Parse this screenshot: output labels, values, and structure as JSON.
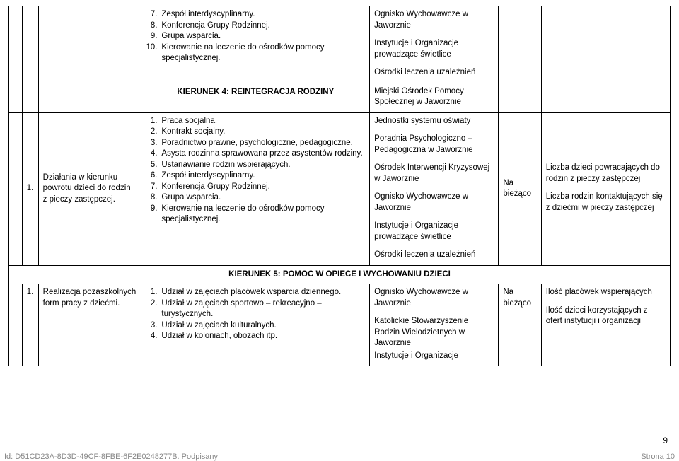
{
  "row0": {
    "list": [
      {
        "n": "7.",
        "t": "Zespół interdyscyplinarny."
      },
      {
        "n": "8.",
        "t": "Konferencja Grupy Rodzinnej."
      },
      {
        "n": "9.",
        "t": "Grupa wsparcia."
      },
      {
        "n": "10.",
        "t": "Kierowanie na leczenie do ośrodków pomocy specjalistycznej."
      }
    ],
    "col_e": [
      "Ognisko Wychowawcze w Jaworznie",
      "Instytucje i Organizacje prowadzące świetlice",
      "Ośrodki leczenia uzależnień"
    ]
  },
  "sec4": {
    "title": "KIERUNEK 4: REINTEGRACJA RODZINY",
    "col_e": "Miejski Ośrodek Pomocy Społecznej w Jaworznie"
  },
  "row1": {
    "b": "1.",
    "c": "Działania w kierunku powrotu dzieci do rodzin z pieczy zastępczej.",
    "list": [
      {
        "n": "1.",
        "t": "Praca socjalna."
      },
      {
        "n": "2.",
        "t": "Kontrakt socjalny."
      },
      {
        "n": "3.",
        "t": "Poradnictwo prawne, psychologiczne, pedagogiczne."
      },
      {
        "n": "4.",
        "t": "Asysta rodzinna sprawowana przez asystentów rodziny."
      },
      {
        "n": "5.",
        "t": "Ustanawianie rodzin wspierających."
      },
      {
        "n": "6.",
        "t": "Zespół interdyscyplinarny."
      },
      {
        "n": "7.",
        "t": "Konferencja Grupy Rodzinnej."
      },
      {
        "n": "8.",
        "t": "Grupa wsparcia."
      },
      {
        "n": "9.",
        "t": "Kierowanie na leczenie do ośrodków pomocy specjalistycznej."
      }
    ],
    "col_e": [
      "Jednostki systemu oświaty",
      "Poradnia Psychologiczno – Pedagogiczna w Jaworznie",
      "Ośrodek Interwencji Kryzysowej w Jaworznie",
      "Ognisko Wychowawcze w Jaworznie",
      "Instytucje i Organizacje prowadzące świetlice",
      "Ośrodki leczenia uzależnień"
    ],
    "f": "Na bieżąco",
    "g": [
      "Liczba dzieci powracających do rodzin z pieczy zastępczej",
      "Liczba rodzin kontaktujących się z dziećmi w pieczy zastępczej"
    ]
  },
  "sec5": {
    "title": "KIERUNEK 5: POMOC W OPIECE I WYCHOWANIU DZIECI"
  },
  "row2": {
    "b": "1.",
    "c": "Realizacja pozaszkolnych form pracy z dziećmi.",
    "list": [
      {
        "n": "1.",
        "t": "Udział w zajęciach placówek wsparcia dziennego."
      },
      {
        "n": "2.",
        "t": "Udział w zajęciach sportowo – rekreacyjno – turystycznych."
      },
      {
        "n": "3.",
        "t": "Udział w zajęciach kulturalnych."
      },
      {
        "n": "4.",
        "t": "Udział w koloniach, obozach itp."
      }
    ],
    "col_e": [
      "Ognisko Wychowawcze w Jaworznie",
      "Katolickie Stowarzyszenie Rodzin Wielodzietnych w Jaworznie",
      "Instytucje i Organizacje"
    ],
    "f": "Na bieżąco",
    "g": [
      "Ilość placówek wspierających",
      "Ilość dzieci korzystających z ofert instytucji i organizacji"
    ]
  },
  "page": "9",
  "footer_left": "Id: D51CD23A-8D3D-49CF-8FBE-6F2E0248277B. Podpisany",
  "footer_right": "Strona 10"
}
